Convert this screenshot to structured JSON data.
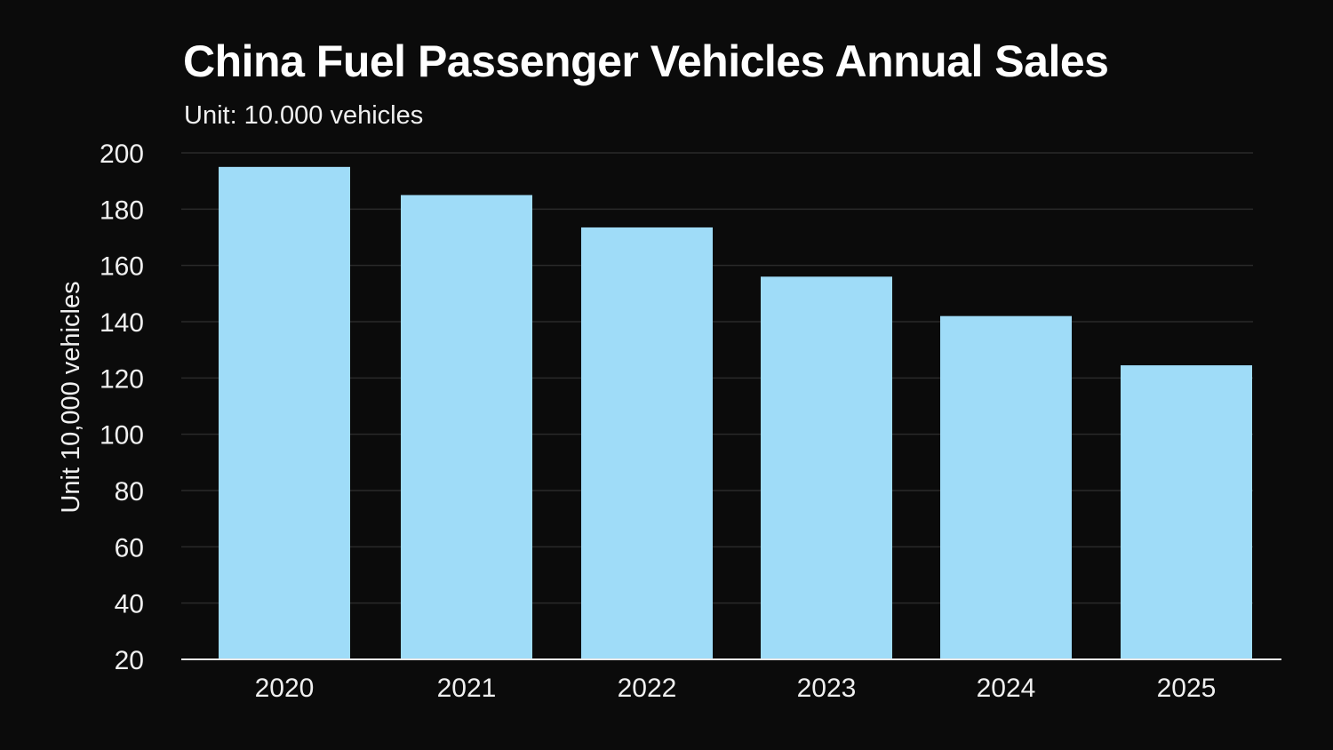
{
  "chart_data": {
    "type": "bar",
    "title": "China Fuel Passenger Vehicles Annual Sales",
    "subtitle": "Unit: 10.000 vehicles",
    "xlabel": "",
    "ylabel": "Unit 10,000 vehicles",
    "categories": [
      "2020",
      "2021",
      "2022",
      "2023",
      "2024",
      "2025"
    ],
    "values": [
      195,
      185,
      173.5,
      156,
      142,
      124.5
    ],
    "ylim": [
      20,
      200
    ],
    "yticks": [
      20,
      40,
      60,
      80,
      100,
      120,
      140,
      160,
      180,
      200
    ],
    "grid": true,
    "legend": "none",
    "bar_color": "#9fdcf8",
    "background_color": "#0b0b0b",
    "gridline_color": "#2a2a2a",
    "axis_color": "#e8e8e8"
  }
}
